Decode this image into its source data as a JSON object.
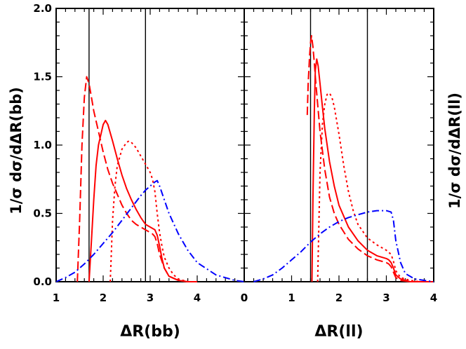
{
  "chart_data": [
    {
      "type": "line",
      "panel": "left",
      "xlabel": "ΔR(bb)",
      "ylabel": "1/σ  dσ/dΔR(bb)",
      "xlim": [
        1,
        5
      ],
      "ylim": [
        0,
        2
      ],
      "xticks": [
        "1",
        "2",
        "3",
        "4",
        "0"
      ],
      "yticks": [
        "0.0",
        "0.5",
        "1.0",
        "1.5",
        "2.0"
      ],
      "vertical_lines": [
        1.7,
        2.9
      ],
      "series": [
        {
          "style": "dashed",
          "color": "#ff0000",
          "x": [
            1.45,
            1.5,
            1.55,
            1.6,
            1.65,
            1.7,
            1.75,
            1.8,
            1.9,
            2.0,
            2.1,
            2.2,
            2.3,
            2.4,
            2.5,
            2.6,
            2.7,
            2.8,
            2.9,
            3.0,
            3.05,
            3.1,
            3.15,
            3.2,
            3.3,
            3.4,
            3.6,
            3.8,
            4.0
          ],
          "y": [
            0.0,
            0.45,
            1.0,
            1.35,
            1.5,
            1.45,
            1.35,
            1.25,
            1.1,
            0.95,
            0.82,
            0.72,
            0.64,
            0.56,
            0.5,
            0.45,
            0.42,
            0.4,
            0.38,
            0.36,
            0.35,
            0.33,
            0.28,
            0.2,
            0.1,
            0.04,
            0.01,
            0.0,
            0.0
          ]
        },
        {
          "style": "solid",
          "color": "#ff0000",
          "x": [
            1.7,
            1.75,
            1.8,
            1.85,
            1.9,
            2.0,
            2.05,
            2.1,
            2.2,
            2.3,
            2.4,
            2.5,
            2.6,
            2.7,
            2.8,
            2.9,
            3.0,
            3.1,
            3.15,
            3.2,
            3.25,
            3.3,
            3.4,
            3.6,
            3.8,
            4.0
          ],
          "y": [
            0.0,
            0.3,
            0.6,
            0.85,
            1.0,
            1.15,
            1.18,
            1.15,
            1.03,
            0.9,
            0.78,
            0.68,
            0.6,
            0.53,
            0.47,
            0.42,
            0.4,
            0.38,
            0.34,
            0.26,
            0.17,
            0.1,
            0.04,
            0.01,
            0.0,
            0.0
          ]
        },
        {
          "style": "dotted",
          "color": "#ff0000",
          "x": [
            2.15,
            2.2,
            2.25,
            2.3,
            2.4,
            2.5,
            2.55,
            2.6,
            2.7,
            2.8,
            2.9,
            3.0,
            3.05,
            3.1,
            3.15,
            3.2,
            3.25,
            3.3,
            3.4,
            3.5,
            3.6,
            3.7,
            3.8,
            4.0
          ],
          "y": [
            0.0,
            0.45,
            0.7,
            0.85,
            0.97,
            1.02,
            1.03,
            1.02,
            0.98,
            0.92,
            0.86,
            0.8,
            0.75,
            0.66,
            0.5,
            0.36,
            0.26,
            0.18,
            0.1,
            0.05,
            0.02,
            0.01,
            0.0,
            0.0
          ]
        },
        {
          "style": "dashdot",
          "color": "#0000ff",
          "x": [
            1.0,
            1.2,
            1.4,
            1.6,
            1.8,
            2.0,
            2.2,
            2.4,
            2.6,
            2.8,
            2.9,
            3.0,
            3.1,
            3.15,
            3.2,
            3.3,
            3.4,
            3.6,
            3.8,
            4.0,
            4.4,
            4.8,
            5.0
          ],
          "y": [
            0.0,
            0.03,
            0.07,
            0.13,
            0.2,
            0.28,
            0.36,
            0.45,
            0.54,
            0.63,
            0.67,
            0.7,
            0.73,
            0.74,
            0.7,
            0.6,
            0.5,
            0.35,
            0.23,
            0.14,
            0.05,
            0.01,
            0.0
          ]
        }
      ]
    },
    {
      "type": "line",
      "panel": "right",
      "xlabel": "ΔR(ll)",
      "ylabel": "1/σ  dσ/dΔR(ll)",
      "xlim": [
        0,
        4
      ],
      "ylim": [
        0,
        2
      ],
      "xticks": [
        "0",
        "1",
        "2",
        "3",
        "4"
      ],
      "vertical_lines": [
        1.4,
        2.6
      ],
      "series": [
        {
          "style": "dashed",
          "color": "#ff0000",
          "x": [
            1.33,
            1.35,
            1.38,
            1.4,
            1.42,
            1.45,
            1.48,
            1.5,
            1.55,
            1.6,
            1.7,
            1.8,
            1.9,
            2.0,
            2.2,
            2.4,
            2.6,
            2.8,
            3.0,
            3.05,
            3.1,
            3.15,
            3.2,
            3.3,
            3.5,
            3.7,
            4.0
          ],
          "y": [
            1.22,
            1.45,
            1.65,
            1.75,
            1.8,
            1.72,
            1.6,
            1.5,
            1.3,
            1.1,
            0.82,
            0.62,
            0.5,
            0.42,
            0.31,
            0.24,
            0.19,
            0.16,
            0.14,
            0.13,
            0.11,
            0.07,
            0.03,
            0.01,
            0.0,
            0.0,
            0.0
          ]
        },
        {
          "style": "solid",
          "color": "#ff0000",
          "x": [
            1.43,
            1.45,
            1.48,
            1.5,
            1.53,
            1.56,
            1.6,
            1.65,
            1.7,
            1.8,
            1.9,
            2.0,
            2.2,
            2.4,
            2.6,
            2.8,
            3.0,
            3.05,
            3.1,
            3.15,
            3.2,
            3.3,
            3.5,
            3.7,
            4.0
          ],
          "y": [
            0.0,
            0.6,
            1.25,
            1.55,
            1.63,
            1.58,
            1.45,
            1.28,
            1.12,
            0.88,
            0.7,
            0.56,
            0.4,
            0.3,
            0.23,
            0.19,
            0.17,
            0.16,
            0.14,
            0.1,
            0.05,
            0.02,
            0.0,
            0.0,
            0.0
          ]
        },
        {
          "style": "dotted",
          "color": "#ff0000",
          "x": [
            1.55,
            1.6,
            1.65,
            1.7,
            1.75,
            1.8,
            1.85,
            1.9,
            2.0,
            2.1,
            2.2,
            2.3,
            2.4,
            2.6,
            2.8,
            3.0,
            3.1,
            3.15,
            3.2,
            3.3,
            3.5,
            3.7,
            4.0
          ],
          "y": [
            0.0,
            0.8,
            1.15,
            1.3,
            1.37,
            1.38,
            1.35,
            1.28,
            1.08,
            0.85,
            0.66,
            0.52,
            0.42,
            0.32,
            0.27,
            0.23,
            0.2,
            0.15,
            0.08,
            0.03,
            0.01,
            0.0,
            0.0
          ]
        },
        {
          "style": "dashdot",
          "color": "#0000ff",
          "x": [
            0.2,
            0.4,
            0.6,
            0.8,
            1.0,
            1.2,
            1.4,
            1.6,
            1.8,
            2.0,
            2.2,
            2.4,
            2.6,
            2.8,
            3.0,
            3.1,
            3.15,
            3.2,
            3.3,
            3.4,
            3.6,
            3.8,
            4.0
          ],
          "y": [
            0.0,
            0.02,
            0.05,
            0.1,
            0.16,
            0.22,
            0.29,
            0.35,
            0.4,
            0.44,
            0.47,
            0.49,
            0.51,
            0.52,
            0.52,
            0.51,
            0.45,
            0.3,
            0.14,
            0.06,
            0.02,
            0.01,
            0.0
          ]
        }
      ]
    }
  ]
}
